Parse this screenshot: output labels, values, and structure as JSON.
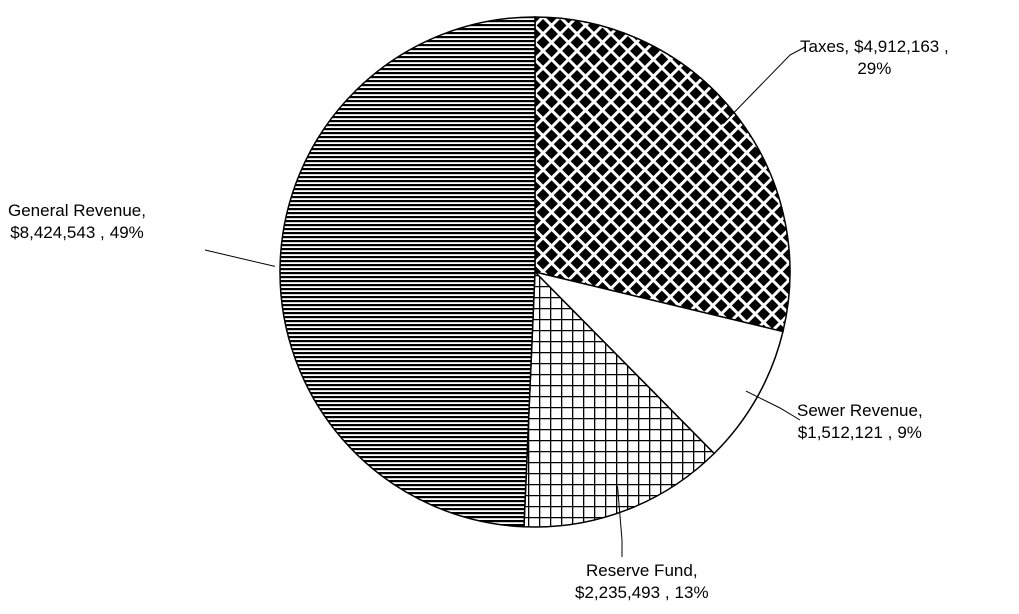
{
  "chart_data": {
    "type": "pie",
    "categories": [
      "Taxes",
      "Sewer Revenue",
      "Reserve Fund",
      "General Revenue"
    ],
    "values": [
      4912163,
      1512121,
      2235493,
      8424543
    ],
    "value_labels": [
      "$4,912,163",
      "$1,512,121",
      "$2,235,493",
      "$8,424,543"
    ],
    "percentages": [
      29,
      9,
      13,
      49
    ],
    "percentage_labels": [
      "29%",
      "9%",
      "13%",
      "49%"
    ],
    "patterns": [
      "diamond",
      "none",
      "grid",
      "hlines"
    ]
  }
}
